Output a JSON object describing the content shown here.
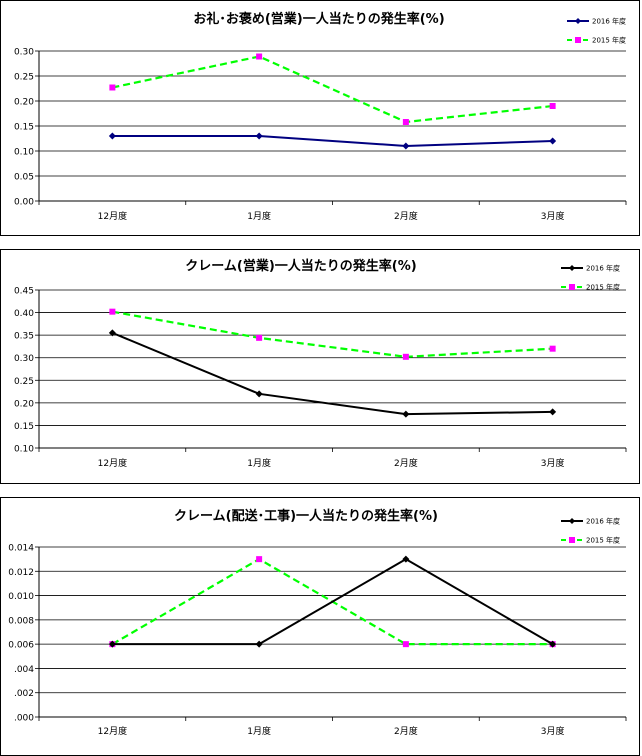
{
  "chart_data": [
    {
      "type": "line",
      "title": "お礼･お褒め(営業)一人当たりの発生率(%)",
      "categories": [
        "12月度",
        "1月度",
        "2月度",
        "3月度"
      ],
      "ylim": [
        0,
        0.3
      ],
      "yticks": [
        "0.00",
        "0.05",
        "0.10",
        "0.15",
        "0.20",
        "0.25",
        "0.30"
      ],
      "grid": true,
      "legend_position": "top-right",
      "series": [
        {
          "name": "2016 年度",
          "values": [
            0.13,
            0.13,
            0.11,
            0.12
          ],
          "color": "#000080",
          "style": "solid",
          "marker": "diamond"
        },
        {
          "name": "2015 年度",
          "values": [
            0.227,
            0.289,
            0.158,
            0.19
          ],
          "color": "#00ff00",
          "style": "dashed",
          "marker": "square",
          "marker_color": "#ff00ff"
        }
      ]
    },
    {
      "type": "line",
      "title": "クレーム(営業)一人当たりの発生率(%)",
      "categories": [
        "12月度",
        "1月度",
        "2月度",
        "3月度"
      ],
      "ylim": [
        0.1,
        0.45
      ],
      "yticks": [
        "0.10",
        "0.15",
        "0.20",
        "0.25",
        "0.30",
        "0.35",
        "0.40",
        "0.45"
      ],
      "grid": true,
      "legend_position": "top-right",
      "series": [
        {
          "name": "2016 年度",
          "values": [
            0.355,
            0.22,
            0.175,
            0.18
          ],
          "color": "#000000",
          "style": "solid",
          "marker": "diamond"
        },
        {
          "name": "2015 年度",
          "values": [
            0.402,
            0.344,
            0.302,
            0.32
          ],
          "color": "#00ff00",
          "style": "dashed",
          "marker": "square",
          "marker_color": "#ff00ff"
        }
      ]
    },
    {
      "type": "line",
      "title": "クレーム(配送･工事)一人当たりの発生率(%)",
      "categories": [
        "12月度",
        "1月度",
        "2月度",
        "3月度"
      ],
      "ylim": [
        0,
        0.014
      ],
      "yticks": [
        ".000",
        ".002",
        ".004",
        "0.006",
        "0.008",
        "0.010",
        "0.012",
        "0.014"
      ],
      "grid": true,
      "legend_position": "top-right",
      "series": [
        {
          "name": "2016 年度",
          "values": [
            0.006,
            0.006,
            0.013,
            0.006
          ],
          "color": "#000000",
          "style": "solid",
          "marker": "diamond"
        },
        {
          "name": "2015 年度",
          "values": [
            0.006,
            0.013,
            0.006,
            0.006
          ],
          "color": "#00ff00",
          "style": "dashed",
          "marker": "square",
          "marker_color": "#ff00ff"
        }
      ]
    }
  ]
}
